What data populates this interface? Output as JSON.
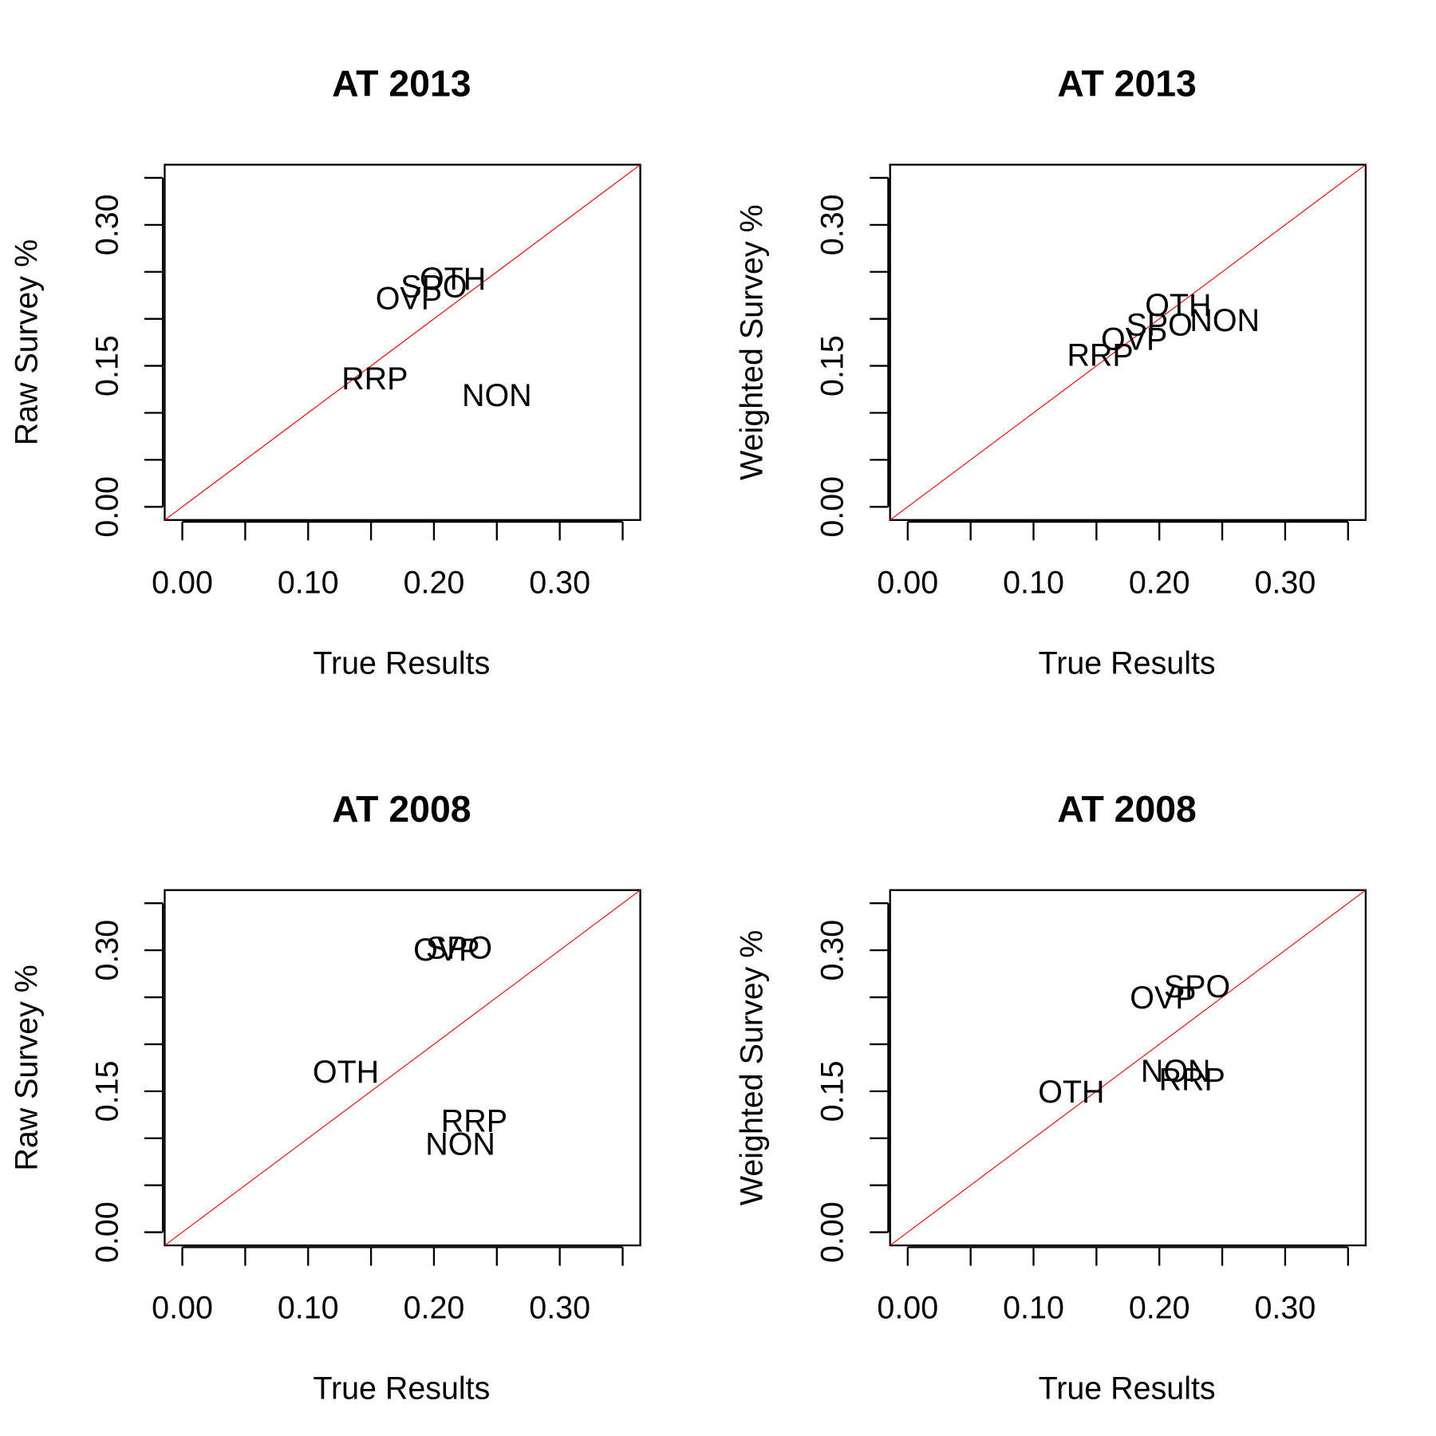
{
  "chart_data": [
    {
      "type": "scatter",
      "title": "AT 2013",
      "xlabel": "True Results",
      "ylabel": "Raw Survey %",
      "xlim": [
        -0.014,
        0.364
      ],
      "ylim": [
        -0.014,
        0.364
      ],
      "xticks": [
        "0.00",
        "0.10",
        "0.20",
        "0.30"
      ],
      "yticks": [
        "0.00",
        "0.15",
        "0.30"
      ],
      "reference_line": "y = x",
      "points": [
        {
          "label": "OTH",
          "x": 0.215,
          "y": 0.243
        },
        {
          "label": "SPO",
          "x": 0.2,
          "y": 0.235
        },
        {
          "label": "OVP",
          "x": 0.18,
          "y": 0.222
        },
        {
          "label": "RRP",
          "x": 0.153,
          "y": 0.137
        },
        {
          "label": "NON",
          "x": 0.25,
          "y": 0.119
        }
      ]
    },
    {
      "type": "scatter",
      "title": "AT 2013",
      "xlabel": "True Results",
      "ylabel": "Weighted Survey %",
      "xlim": [
        -0.014,
        0.364
      ],
      "ylim": [
        -0.014,
        0.364
      ],
      "xticks": [
        "0.00",
        "0.10",
        "0.20",
        "0.30"
      ],
      "yticks": [
        "0.00",
        "0.15",
        "0.30"
      ],
      "reference_line": "y = x",
      "points": [
        {
          "label": "OTH",
          "x": 0.215,
          "y": 0.215
        },
        {
          "label": "NON",
          "x": 0.252,
          "y": 0.199
        },
        {
          "label": "SPO",
          "x": 0.2,
          "y": 0.194
        },
        {
          "label": "OVP",
          "x": 0.18,
          "y": 0.179
        },
        {
          "label": "RRP",
          "x": 0.153,
          "y": 0.162
        }
      ]
    },
    {
      "type": "scatter",
      "title": "AT 2008",
      "xlabel": "True Results",
      "ylabel": "Raw Survey %",
      "xlim": [
        -0.014,
        0.364
      ],
      "ylim": [
        -0.014,
        0.364
      ],
      "xticks": [
        "0.00",
        "0.10",
        "0.20",
        "0.30"
      ],
      "yticks": [
        "0.00",
        "0.15",
        "0.30"
      ],
      "reference_line": "y = x",
      "points": [
        {
          "label": "SPO",
          "x": 0.22,
          "y": 0.303
        },
        {
          "label": "OVP",
          "x": 0.21,
          "y": 0.301
        },
        {
          "label": "OTH",
          "x": 0.13,
          "y": 0.171
        },
        {
          "label": "RRP",
          "x": 0.232,
          "y": 0.119
        },
        {
          "label": "NON",
          "x": 0.221,
          "y": 0.094
        }
      ]
    },
    {
      "type": "scatter",
      "title": "AT 2008",
      "xlabel": "True Results",
      "ylabel": "Weighted Survey %",
      "xlim": [
        -0.014,
        0.364
      ],
      "ylim": [
        -0.014,
        0.364
      ],
      "xticks": [
        "0.00",
        "0.10",
        "0.20",
        "0.30"
      ],
      "yticks": [
        "0.00",
        "0.15",
        "0.30"
      ],
      "reference_line": "y = x",
      "points": [
        {
          "label": "SPO",
          "x": 0.23,
          "y": 0.262
        },
        {
          "label": "OVP",
          "x": 0.203,
          "y": 0.25
        },
        {
          "label": "NON",
          "x": 0.213,
          "y": 0.172
        },
        {
          "label": "RRP",
          "x": 0.226,
          "y": 0.163
        },
        {
          "label": "OTH",
          "x": 0.13,
          "y": 0.15
        }
      ]
    }
  ]
}
